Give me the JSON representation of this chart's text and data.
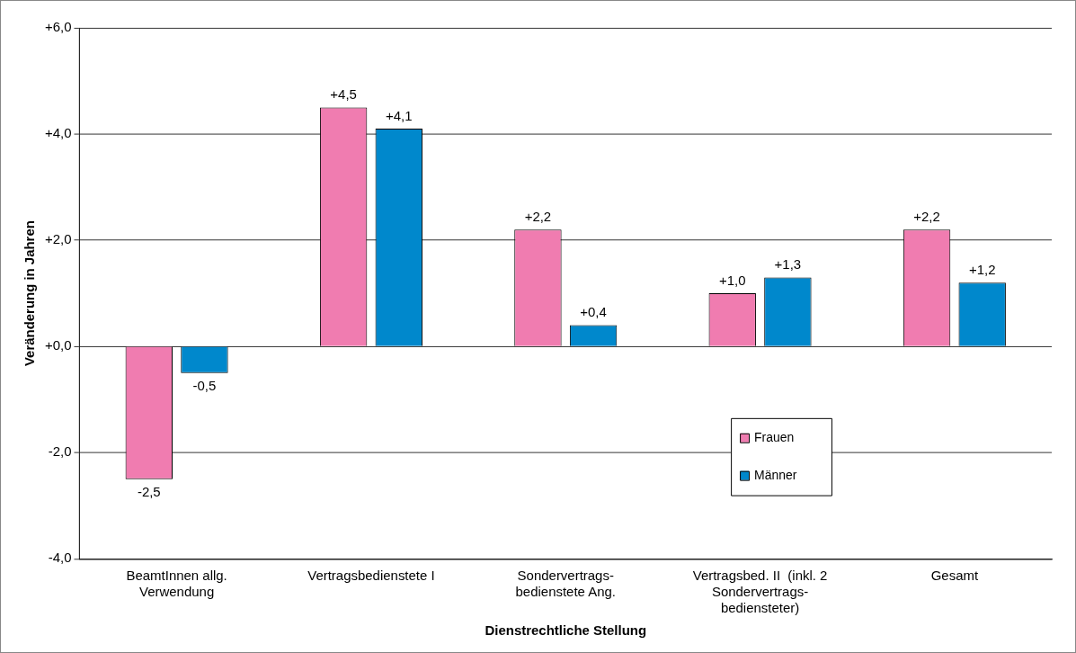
{
  "chart_data": {
    "type": "bar",
    "xlabel": "Dienstrechtliche Stellung",
    "ylabel": "Veränderung in Jahren",
    "categories": [
      "BeamtInnen allg.\nVerwendung",
      "Vertragsbedienstete I",
      "Sondervertrags-\nbedienstete Ang.",
      "Vertragsbed. II  (inkl. 2\nSondervertrags-\nbediensteter)",
      "Gesamt"
    ],
    "series": [
      {
        "name": "Frauen",
        "color": "#f07cb0",
        "values": [
          -2.5,
          4.5,
          2.2,
          1.0,
          2.2
        ],
        "value_labels": [
          "-2,5",
          "+4,5",
          "+2,2",
          "+1,0",
          "+2,2"
        ]
      },
      {
        "name": "Männer",
        "color": "#0088cc",
        "values": [
          -0.5,
          4.1,
          0.4,
          1.3,
          1.2
        ],
        "value_labels": [
          "-0,5",
          "+4,1",
          "+0,4",
          "+1,3",
          "+1,2"
        ]
      }
    ],
    "ylim": [
      -4,
      6
    ],
    "yticks": [
      {
        "value": -4,
        "label": "-4,0"
      },
      {
        "value": -2,
        "label": "-2,0"
      },
      {
        "value": 0,
        "label": "+0,0"
      },
      {
        "value": 2,
        "label": "+2,0"
      },
      {
        "value": 4,
        "label": "+4,0"
      },
      {
        "value": 6,
        "label": "+6,0"
      }
    ],
    "grid": "y",
    "legend": "bottom right"
  }
}
